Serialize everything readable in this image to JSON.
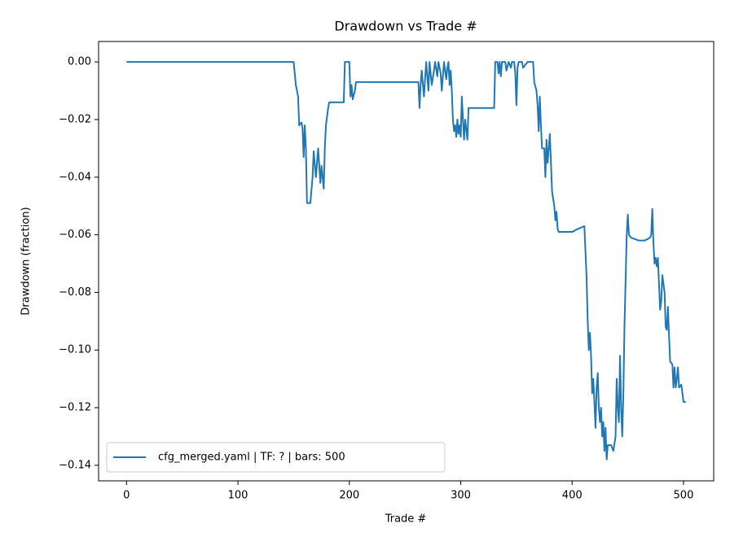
{
  "chart_data": {
    "type": "line",
    "title": "Drawdown vs Trade #",
    "xlabel": "Trade #",
    "ylabel": "Drawdown (fraction)",
    "x": [
      0,
      150,
      152,
      154,
      155,
      157,
      158,
      159,
      160,
      161,
      162,
      165,
      167,
      168,
      170,
      171,
      172,
      174,
      175,
      176,
      177,
      178,
      179,
      181,
      182,
      195,
      196,
      200,
      201,
      202,
      203,
      205,
      206,
      262,
      263,
      264,
      265,
      267,
      269,
      271,
      272,
      274,
      276,
      277,
      279,
      280,
      282,
      283,
      285,
      287,
      288,
      289,
      290,
      291,
      292,
      293,
      294,
      295,
      296,
      297,
      298,
      299,
      300,
      301,
      302,
      303,
      304,
      306,
      307,
      330,
      331,
      333,
      334,
      335,
      336,
      337,
      340,
      341,
      343,
      345,
      346,
      348,
      349,
      350,
      351,
      352,
      355,
      356,
      360,
      365,
      366,
      368,
      369,
      370,
      371,
      372,
      373,
      375,
      376,
      377,
      378,
      379,
      380,
      382,
      384,
      385,
      386,
      387,
      388,
      395,
      400,
      405,
      411,
      413,
      414,
      415,
      416,
      417,
      418,
      419,
      420,
      421,
      422,
      423,
      424,
      425,
      426,
      427,
      428,
      429,
      430,
      431,
      432,
      435,
      437,
      439,
      440,
      441,
      442,
      443,
      444,
      445,
      446,
      447,
      449,
      450,
      451,
      453,
      460,
      465,
      470,
      471,
      472,
      473,
      474,
      475,
      476,
      477,
      478,
      479,
      480,
      481,
      483,
      484,
      485,
      486,
      487,
      488,
      490,
      491,
      492,
      493,
      494,
      495,
      496,
      498,
      500,
      502
    ],
    "series": [
      {
        "name": "cfg_merged.yaml | TF: ? | bars: 500",
        "color": "#1f77b4",
        "values": [
          0,
          0,
          -0.008,
          -0.012,
          -0.022,
          -0.021,
          -0.023,
          -0.033,
          -0.022,
          -0.03,
          -0.049,
          -0.049,
          -0.04,
          -0.031,
          -0.04,
          -0.035,
          -0.03,
          -0.042,
          -0.036,
          -0.04,
          -0.044,
          -0.03,
          -0.022,
          -0.016,
          -0.014,
          -0.014,
          0,
          0,
          -0.012,
          -0.008,
          -0.013,
          -0.01,
          -0.007,
          -0.007,
          -0.016,
          -0.008,
          -0.003,
          -0.012,
          0,
          -0.01,
          0,
          -0.008,
          -0.003,
          0,
          -0.005,
          0,
          -0.004,
          -0.01,
          0,
          -0.006,
          -0.002,
          0,
          -0.008,
          -0.003,
          -0.01,
          -0.02,
          -0.024,
          -0.022,
          -0.026,
          -0.02,
          -0.025,
          -0.022,
          -0.026,
          -0.012,
          -0.02,
          -0.027,
          -0.02,
          -0.027,
          -0.016,
          -0.016,
          0,
          0,
          -0.004,
          0,
          -0.005,
          0,
          0,
          -0.003,
          0,
          -0.002,
          0,
          0,
          -0.004,
          -0.015,
          -0.002,
          0,
          0,
          -0.002,
          0,
          0,
          -0.007,
          -0.01,
          -0.015,
          -0.024,
          -0.012,
          -0.022,
          -0.03,
          -0.03,
          -0.04,
          -0.027,
          -0.035,
          -0.03,
          -0.025,
          -0.045,
          -0.05,
          -0.055,
          -0.052,
          -0.058,
          -0.059,
          -0.059,
          -0.059,
          -0.058,
          -0.057,
          -0.075,
          -0.09,
          -0.1,
          -0.094,
          -0.102,
          -0.115,
          -0.11,
          -0.118,
          -0.127,
          -0.113,
          -0.108,
          -0.12,
          -0.125,
          -0.12,
          -0.13,
          -0.125,
          -0.135,
          -0.127,
          -0.138,
          -0.133,
          -0.133,
          -0.135,
          -0.13,
          -0.11,
          -0.12,
          -0.125,
          -0.102,
          -0.12,
          -0.13,
          -0.115,
          -0.092,
          -0.06,
          -0.053,
          -0.06,
          -0.061,
          -0.062,
          -0.062,
          -0.061,
          -0.06,
          -0.051,
          -0.063,
          -0.07,
          -0.068,
          -0.071,
          -0.068,
          -0.077,
          -0.086,
          -0.083,
          -0.074,
          -0.08,
          -0.092,
          -0.093,
          -0.085,
          -0.095,
          -0.104,
          -0.105,
          -0.113,
          -0.106,
          -0.113,
          -0.11,
          -0.106,
          -0.113,
          -0.112,
          -0.118,
          -0.118
        ]
      }
    ],
    "xlim": [
      -25.1,
      527.1
    ],
    "xticks": [
      0,
      100,
      200,
      300,
      400,
      500
    ],
    "ylim": [
      -0.1454,
      0.0071
    ],
    "yticks": [
      {
        "value": 0,
        "label": "0.00"
      },
      {
        "value": -0.02,
        "label": "−0.02"
      },
      {
        "value": -0.04,
        "label": "−0.04"
      },
      {
        "value": -0.06,
        "label": "−0.06"
      },
      {
        "value": -0.08,
        "label": "−0.08"
      },
      {
        "value": -0.1,
        "label": "−0.10"
      },
      {
        "value": -0.12,
        "label": "−0.12"
      },
      {
        "value": -0.14,
        "label": "−0.14"
      }
    ],
    "legend": "lower left"
  }
}
